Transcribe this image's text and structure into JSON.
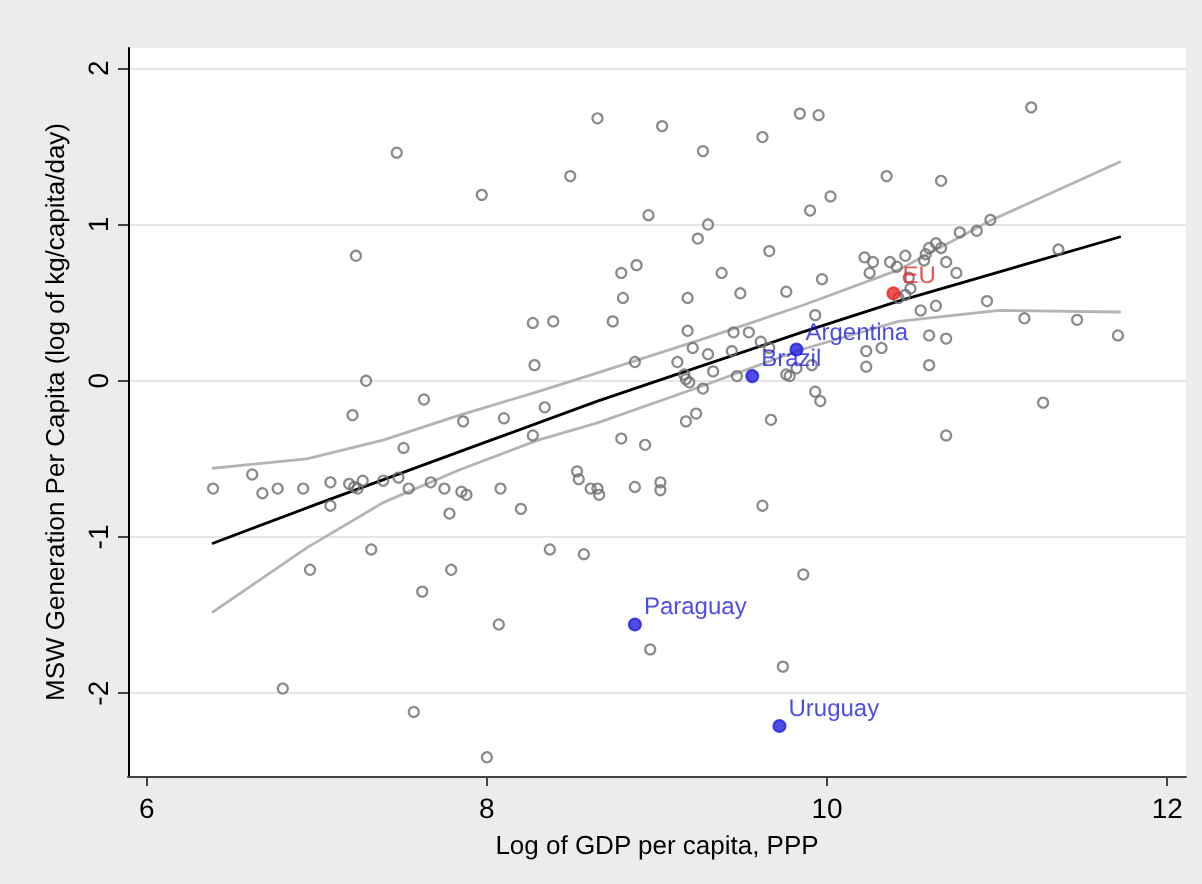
{
  "chart_data": {
    "type": "scatter",
    "xlabel": "Log of GDP per capita, PPP",
    "ylabel": "MSW Generation Per Capita (log of kg/capita/day)",
    "xlim": [
      5.89,
      12.11
    ],
    "ylim": [
      -2.53,
      2.13
    ],
    "xticks": [
      6,
      8,
      10,
      12
    ],
    "yticks": [
      -2,
      -1,
      0,
      1,
      2
    ],
    "grid": "y",
    "marker": "circle",
    "series": [
      {
        "type": "line",
        "marker": "none",
        "color": "#b4b4b4",
        "x": [
          6.39,
          6.94,
          7.39,
          7.84,
          8.3,
          8.65,
          9.25,
          9.85,
          10.42,
          10.97,
          11.72
        ],
        "values": [
          -0.56,
          -0.5,
          -0.38,
          -0.22,
          -0.07,
          0.05,
          0.26,
          0.48,
          0.71,
          1.03,
          1.4
        ]
      },
      {
        "type": "line",
        "marker": "none",
        "color": "#b4b4b4",
        "x": [
          6.39,
          6.94,
          7.39,
          7.84,
          8.3,
          8.65,
          9.25,
          9.85,
          10.42,
          11.01,
          11.72
        ],
        "values": [
          -1.48,
          -1.07,
          -0.78,
          -0.57,
          -0.38,
          -0.27,
          -0.04,
          0.2,
          0.38,
          0.45,
          0.44
        ]
      },
      {
        "type": "line",
        "marker": "none",
        "color": "#000000",
        "x": [
          6.39,
          7,
          7.5,
          8,
          8.65,
          9.25,
          9.85,
          10.42,
          11.72
        ],
        "values": [
          -1.04,
          -0.79,
          -0.59,
          -0.39,
          -0.13,
          0.09,
          0.31,
          0.51,
          0.92
        ]
      },
      {
        "color": "#6e6e6e",
        "x": [
          7.47,
          7.97,
          7.23,
          7.29,
          7.63,
          7.21,
          7.86,
          8.1,
          8.65,
          9.03,
          9.27,
          9.62,
          9.84,
          9.95,
          8.49,
          10.35,
          9.9,
          10.02,
          8.95,
          9.3,
          9.24,
          9.66,
          10.22,
          10.27,
          10.37,
          10.25,
          8.79,
          8.88,
          9.38,
          9.97,
          8.8,
          9.18,
          9.49,
          9.76,
          8.27,
          8.39,
          8.74,
          9.93,
          9.18,
          9.45,
          9.54,
          9.61,
          9.66,
          9.21,
          9.3,
          9.44,
          10.23,
          10.32,
          10.23,
          8.28,
          8.87,
          9.12,
          9.33,
          9.47,
          9.16,
          9.17,
          9.19,
          9.76,
          9.78,
          9.82,
          9.91,
          9.27,
          9.93,
          9.96,
          8.34,
          8.27,
          8.79,
          9.23,
          9.17,
          9.67,
          11.2,
          10.67,
          10.96,
          10.88,
          10.78,
          11.36,
          10.64,
          10.67,
          10.6,
          10.58,
          10.57,
          10.46,
          10.41,
          10.7,
          10.76,
          10.48,
          10.49,
          10.46,
          10.42,
          10.55,
          10.64,
          10.94,
          11.16,
          11.47,
          11.71,
          10.6,
          10.7,
          10.6,
          11.27,
          10.7,
          6.62,
          6.39,
          6.68,
          6.77,
          6.92,
          7.08,
          7.08,
          7.19,
          7.22,
          7.24,
          7.27,
          7.39,
          7.48,
          7.51,
          7.54,
          7.67,
          7.75,
          7.78,
          7.85,
          7.88,
          8.08,
          8.2,
          7.32,
          6.96,
          7.79,
          7.62,
          8.07,
          6.8,
          7.57,
          8.0,
          8.93,
          8.53,
          8.54,
          8.61,
          8.65,
          8.66,
          8.87,
          9.02,
          9.02,
          9.62,
          8.37,
          8.57,
          9.86,
          8.96,
          9.74
        ],
        "values": [
          1.46,
          1.19,
          0.8,
          0.0,
          -0.12,
          -0.22,
          -0.26,
          -0.24,
          1.68,
          1.63,
          1.47,
          1.56,
          1.71,
          1.7,
          1.31,
          1.31,
          1.09,
          1.18,
          1.06,
          1.0,
          0.91,
          0.83,
          0.79,
          0.76,
          0.76,
          0.69,
          0.69,
          0.74,
          0.69,
          0.65,
          0.53,
          0.53,
          0.56,
          0.57,
          0.37,
          0.38,
          0.38,
          0.42,
          0.32,
          0.31,
          0.31,
          0.25,
          0.21,
          0.21,
          0.17,
          0.19,
          0.19,
          0.21,
          0.09,
          0.1,
          0.12,
          0.12,
          0.06,
          0.03,
          0.04,
          0.01,
          -0.01,
          0.04,
          0.03,
          0.08,
          0.1,
          -0.05,
          -0.07,
          -0.13,
          -0.17,
          -0.35,
          -0.37,
          -0.21,
          -0.26,
          -0.25,
          1.75,
          1.28,
          1.03,
          0.96,
          0.95,
          0.84,
          0.88,
          0.85,
          0.85,
          0.81,
          0.77,
          0.8,
          0.73,
          0.76,
          0.69,
          0.66,
          0.59,
          0.55,
          0.53,
          0.45,
          0.48,
          0.51,
          0.4,
          0.39,
          0.29,
          0.29,
          0.27,
          0.1,
          -0.14,
          -0.35,
          -0.6,
          -0.69,
          -0.72,
          -0.69,
          -0.69,
          -0.65,
          -0.8,
          -0.66,
          -0.68,
          -0.69,
          -0.64,
          -0.64,
          -0.62,
          -0.43,
          -0.69,
          -0.65,
          -0.69,
          -0.85,
          -0.71,
          -0.73,
          -0.69,
          -0.82,
          -1.08,
          -1.21,
          -1.21,
          -1.35,
          -1.56,
          -1.97,
          -2.12,
          -2.41,
          -0.41,
          -0.58,
          -0.63,
          -0.69,
          -0.69,
          -0.73,
          -0.68,
          -0.65,
          -0.7,
          -0.8,
          -1.08,
          -1.11,
          -1.24,
          -1.72,
          -1.83
        ]
      },
      {
        "name": "EU",
        "color": "#e8282a",
        "x": [
          10.39
        ],
        "values": [
          0.56
        ]
      },
      {
        "name": "Argentina",
        "color": "#2020e0",
        "x": [
          9.82
        ],
        "values": [
          0.2
        ]
      },
      {
        "name": "Brazil",
        "color": "#2020e0",
        "x": [
          9.56
        ],
        "values": [
          0.03
        ]
      },
      {
        "name": "Paraguay",
        "color": "#2020e0",
        "x": [
          8.87
        ],
        "values": [
          -1.56
        ]
      },
      {
        "name": "Uruguay",
        "color": "#2020e0",
        "x": [
          9.72
        ],
        "values": [
          -2.21
        ]
      }
    ]
  }
}
